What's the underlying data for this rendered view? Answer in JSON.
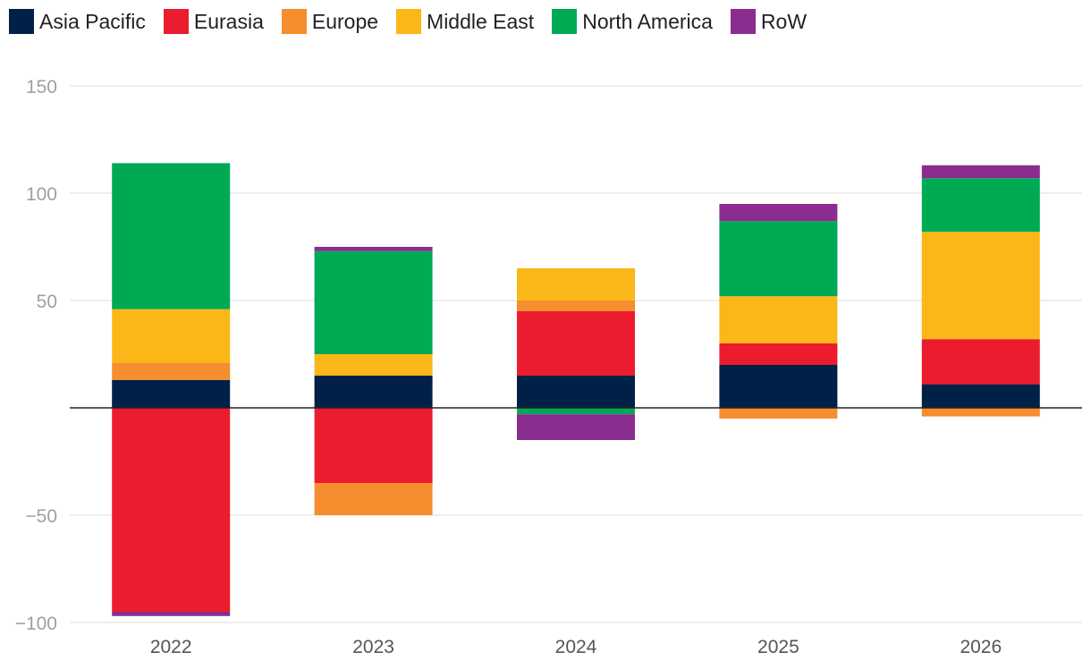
{
  "chart_data": {
    "type": "bar",
    "stacked": true,
    "title": "",
    "xlabel": "",
    "ylabel": "",
    "categories": [
      "2022",
      "2023",
      "2024",
      "2025",
      "2026"
    ],
    "ylim": [
      -100,
      150
    ],
    "yticks": [
      {
        "value": 150,
        "label": "150"
      },
      {
        "value": 100,
        "label": "100"
      },
      {
        "value": 50,
        "label": "50"
      },
      {
        "value": -50,
        "label": "−50"
      },
      {
        "value": -100,
        "label": "−100"
      }
    ],
    "grid": true,
    "legend_position": "top-left",
    "series": [
      {
        "name": "Asia Pacific",
        "color": "#002147",
        "values": [
          13,
          15,
          15,
          20,
          11
        ]
      },
      {
        "name": "Eurasia",
        "color": "#ea1c2e",
        "values": [
          -95,
          -35,
          30,
          10,
          21
        ]
      },
      {
        "name": "Europe",
        "color": "#f68d2e",
        "values": [
          8,
          -15,
          5,
          -5,
          -4
        ]
      },
      {
        "name": "Middle East",
        "color": "#fbb718",
        "values": [
          25,
          10,
          15,
          22,
          50
        ]
      },
      {
        "name": "North America",
        "color": "#00aa55",
        "values": [
          68,
          48,
          -3,
          35,
          25
        ]
      },
      {
        "name": "RoW",
        "color": "#8b2c8f",
        "values": [
          -2,
          2,
          -12,
          8,
          6
        ]
      }
    ]
  }
}
